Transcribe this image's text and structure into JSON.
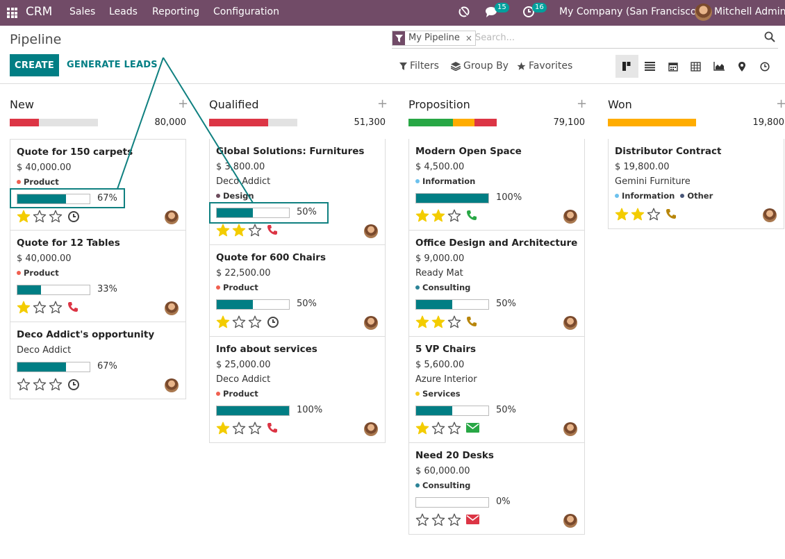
{
  "topbar": {
    "brand": "CRM",
    "menu": [
      "Sales",
      "Leads",
      "Reporting",
      "Configuration"
    ],
    "messages_count": "15",
    "activities_count": "16",
    "company": "My Company (San Francisco)",
    "user": "Mitchell Admin"
  },
  "control": {
    "title": "Pipeline",
    "create_label": "CREATE",
    "generate_label": "GENERATE LEADS",
    "facet_label": "My Pipeline",
    "facet_remove": "×",
    "search_placeholder": "Search...",
    "filters_label": "Filters",
    "groupby_label": "Group By",
    "favorites_label": "Favorites",
    "views": [
      "kanban",
      "list",
      "calendar",
      "pivot",
      "graph",
      "map",
      "activity"
    ]
  },
  "columns": [
    {
      "title": "New",
      "total": "80,000",
      "bar": [
        {
          "color": "#dc3545",
          "fraction": 0.33
        },
        {
          "color": "#e2e2e2",
          "fraction": 0.67
        }
      ],
      "cards": [
        {
          "name": "Quote for 150 carpets",
          "amount": "$ 40,000.00",
          "partner": "",
          "tags": [
            {
              "label": "Product",
              "color": "#f06050"
            }
          ],
          "progress": 67,
          "progress_label": "67%",
          "stars": 1,
          "activity": "clock"
        },
        {
          "name": "Quote for 12 Tables",
          "amount": "$ 40,000.00",
          "partner": "",
          "tags": [
            {
              "label": "Product",
              "color": "#f06050"
            }
          ],
          "progress": 33,
          "progress_label": "33%",
          "stars": 1,
          "activity": "phone-red"
        },
        {
          "name": "Deco Addict's opportunity",
          "amount": "",
          "partner": "Deco Addict",
          "tags": [],
          "progress": 67,
          "progress_label": "67%",
          "stars": 0,
          "activity": "clock"
        }
      ]
    },
    {
      "title": "Qualified",
      "total": "51,300",
      "bar": [
        {
          "color": "#dc3545",
          "fraction": 0.67
        },
        {
          "color": "#e2e2e2",
          "fraction": 0.33
        }
      ],
      "cards": [
        {
          "name": "Global Solutions: Furnitures",
          "amount": "$ 3,800.00",
          "partner": "Deco Addict",
          "tags": [
            {
              "label": "Design",
              "color": "#6c4b5c"
            }
          ],
          "progress": 50,
          "progress_label": "50%",
          "stars": 2,
          "activity": "phone-red"
        },
        {
          "name": "Quote for 600 Chairs",
          "amount": "$ 22,500.00",
          "partner": "",
          "tags": [
            {
              "label": "Product",
              "color": "#f06050"
            }
          ],
          "progress": 50,
          "progress_label": "50%",
          "stars": 1,
          "activity": "clock"
        },
        {
          "name": "Info about services",
          "amount": "$ 25,000.00",
          "partner": "Deco Addict",
          "tags": [
            {
              "label": "Product",
              "color": "#f06050"
            }
          ],
          "progress": 100,
          "progress_label": "100%",
          "stars": 1,
          "activity": "phone-red"
        }
      ]
    },
    {
      "title": "Proposition",
      "total": "79,100",
      "bar": [
        {
          "color": "#28a745",
          "fraction": 0.5
        },
        {
          "color": "#ffac00",
          "fraction": 0.25
        },
        {
          "color": "#dc3545",
          "fraction": 0.25
        }
      ],
      "cards": [
        {
          "name": "Modern Open Space",
          "amount": "$ 4,500.00",
          "partner": "",
          "tags": [
            {
              "label": "Information",
              "color": "#6cc1ed"
            }
          ],
          "progress": 100,
          "progress_label": "100%",
          "stars": 2,
          "activity": "phone-green"
        },
        {
          "name": "Office Design and Architecture",
          "amount": "$ 9,000.00",
          "partner": "Ready Mat",
          "tags": [
            {
              "label": "Consulting",
              "color": "#2c8397"
            }
          ],
          "progress": 50,
          "progress_label": "50%",
          "stars": 2,
          "activity": "phone-orange"
        },
        {
          "name": "5 VP Chairs",
          "amount": "$ 5,600.00",
          "partner": "Azure Interior",
          "tags": [
            {
              "label": "Services",
              "color": "#f7cd1f"
            }
          ],
          "progress": 50,
          "progress_label": "50%",
          "stars": 1,
          "activity": "mail-green"
        },
        {
          "name": "Need 20 Desks",
          "amount": "$ 60,000.00",
          "partner": "",
          "tags": [
            {
              "label": "Consulting",
              "color": "#2c8397"
            }
          ],
          "progress": 0,
          "progress_label": "0%",
          "stars": 0,
          "activity": "mail-red"
        }
      ]
    },
    {
      "title": "Won",
      "total": "19,800",
      "bar": [
        {
          "color": "#ffac00",
          "fraction": 1.0
        }
      ],
      "cards": [
        {
          "name": "Distributor Contract",
          "amount": "$ 19,800.00",
          "partner": "Gemini Furniture",
          "tags": [
            {
              "label": "Information",
              "color": "#6cc1ed"
            },
            {
              "label": "Other",
              "color": "#475577"
            }
          ],
          "progress": null,
          "progress_label": "",
          "stars": 2,
          "activity": "phone-orange"
        }
      ]
    }
  ],
  "colors": {
    "topbar": "#714b67",
    "primary": "#017e84",
    "star": "#f3cc00",
    "annotation": "#0f8080"
  }
}
